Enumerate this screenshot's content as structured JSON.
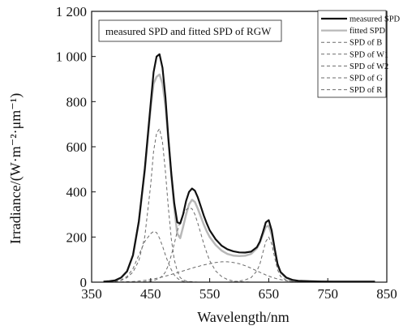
{
  "chart_data": {
    "type": "line",
    "title": "measured SPD and fitted SPD of RGW",
    "xlabel": "Wavelength/nm",
    "ylabel": "Irradiance/(W·m⁻²·μm⁻¹)",
    "xlim": [
      350,
      850
    ],
    "ylim": [
      0,
      1200
    ],
    "xticks": [
      350,
      450,
      550,
      650,
      750,
      850
    ],
    "xtick_labels": [
      "350",
      "450",
      "550",
      "650",
      "750",
      "850"
    ],
    "yticks": [
      0,
      200,
      400,
      600,
      800,
      1000,
      1200
    ],
    "ytick_labels": [
      "0",
      "200",
      "400",
      "600",
      "800",
      "1 000",
      "1 200"
    ],
    "grid": false,
    "legend_position": "top-right",
    "x": [
      370,
      380,
      390,
      400,
      410,
      420,
      430,
      440,
      450,
      455,
      460,
      465,
      470,
      475,
      480,
      485,
      490,
      495,
      500,
      505,
      510,
      515,
      520,
      525,
      530,
      535,
      540,
      545,
      550,
      560,
      570,
      580,
      590,
      600,
      610,
      620,
      630,
      635,
      640,
      645,
      650,
      655,
      660,
      665,
      670,
      680,
      690,
      700,
      720,
      740,
      760,
      780,
      800,
      820,
      830
    ],
    "series": [
      {
        "name": "measured SPD",
        "color": "#111111",
        "dash": "solid",
        "width": 2.2,
        "values": [
          2,
          4,
          8,
          20,
          48,
          120,
          270,
          500,
          790,
          930,
          1000,
          1010,
          950,
          820,
          640,
          480,
          350,
          265,
          260,
          300,
          360,
          400,
          415,
          405,
          375,
          335,
          295,
          260,
          230,
          190,
          162,
          146,
          137,
          132,
          131,
          135,
          155,
          180,
          220,
          265,
          275,
          230,
          150,
          80,
          45,
          20,
          10,
          6,
          4,
          3,
          2,
          2,
          2,
          2,
          2
        ]
      },
      {
        "name": "fitted SPD",
        "color": "#b8b8b8",
        "dash": "solid",
        "width": 2.5,
        "values": [
          2,
          4,
          8,
          20,
          48,
          118,
          265,
          490,
          770,
          880,
          910,
          920,
          880,
          780,
          630,
          470,
          330,
          215,
          195,
          245,
          300,
          345,
          365,
          355,
          325,
          290,
          255,
          225,
          200,
          165,
          140,
          125,
          118,
          116,
          117,
          125,
          150,
          175,
          210,
          245,
          250,
          210,
          140,
          75,
          42,
          18,
          9,
          5,
          3,
          2,
          2,
          2,
          2,
          2,
          2
        ]
      },
      {
        "name": "SPD of B",
        "color": "#6b6b6b",
        "dash": "4,3",
        "width": 1,
        "values": [
          0,
          1,
          3,
          8,
          20,
          45,
          95,
          200,
          430,
          580,
          660,
          680,
          620,
          490,
          330,
          190,
          100,
          50,
          20,
          10,
          6,
          3,
          2,
          1,
          0,
          0,
          0,
          0,
          0,
          0,
          0,
          0,
          0,
          0,
          0,
          0,
          0,
          0,
          0,
          0,
          0,
          0,
          0,
          0,
          0,
          0,
          0,
          0,
          0,
          0,
          0,
          0,
          0,
          0,
          0
        ]
      },
      {
        "name": "SPD of W1",
        "color": "#6b6b6b",
        "dash": "4,3",
        "width": 1,
        "values": [
          0,
          2,
          5,
          10,
          25,
          60,
          120,
          180,
          215,
          225,
          220,
          195,
          160,
          120,
          85,
          55,
          32,
          18,
          8,
          4,
          2,
          1,
          0,
          0,
          0,
          0,
          0,
          0,
          0,
          0,
          0,
          0,
          0,
          0,
          0,
          0,
          0,
          0,
          0,
          0,
          0,
          0,
          0,
          0,
          0,
          0,
          0,
          0,
          0,
          0,
          0,
          0,
          0,
          0,
          0
        ]
      },
      {
        "name": "SPD of W2",
        "color": "#6b6b6b",
        "dash": "4,3",
        "width": 1,
        "values": [
          0,
          0,
          1,
          1,
          2,
          3,
          5,
          8,
          12,
          14,
          17,
          20,
          23,
          27,
          30,
          34,
          38,
          42,
          46,
          50,
          54,
          58,
          62,
          66,
          69,
          73,
          76,
          79,
          82,
          87,
          90,
          90,
          87,
          82,
          73,
          62,
          50,
          44,
          38,
          32,
          27,
          22,
          18,
          14,
          11,
          6,
          3,
          2,
          1,
          0,
          0,
          0,
          0,
          0,
          0
        ]
      },
      {
        "name": "SPD of G",
        "color": "#6b6b6b",
        "dash": "4,3",
        "width": 1,
        "values": [
          0,
          0,
          0,
          0,
          0,
          0,
          0,
          2,
          5,
          8,
          12,
          18,
          28,
          45,
          75,
          120,
          170,
          225,
          270,
          300,
          320,
          330,
          325,
          300,
          260,
          215,
          170,
          130,
          95,
          50,
          25,
          12,
          5,
          2,
          1,
          0,
          0,
          0,
          0,
          0,
          0,
          0,
          0,
          0,
          0,
          0,
          0,
          0,
          0,
          0,
          0,
          0,
          0,
          0,
          0
        ]
      },
      {
        "name": "SPD of R",
        "color": "#6b6b6b",
        "dash": "4,3",
        "width": 1,
        "values": [
          0,
          0,
          0,
          0,
          0,
          0,
          0,
          0,
          0,
          0,
          0,
          0,
          0,
          0,
          0,
          0,
          0,
          0,
          0,
          0,
          0,
          0,
          0,
          0,
          0,
          0,
          0,
          0,
          0,
          0,
          0,
          0,
          2,
          5,
          10,
          20,
          50,
          80,
          130,
          180,
          200,
          170,
          110,
          55,
          25,
          8,
          3,
          1,
          0,
          0,
          0,
          0,
          0,
          0,
          0
        ]
      }
    ]
  }
}
